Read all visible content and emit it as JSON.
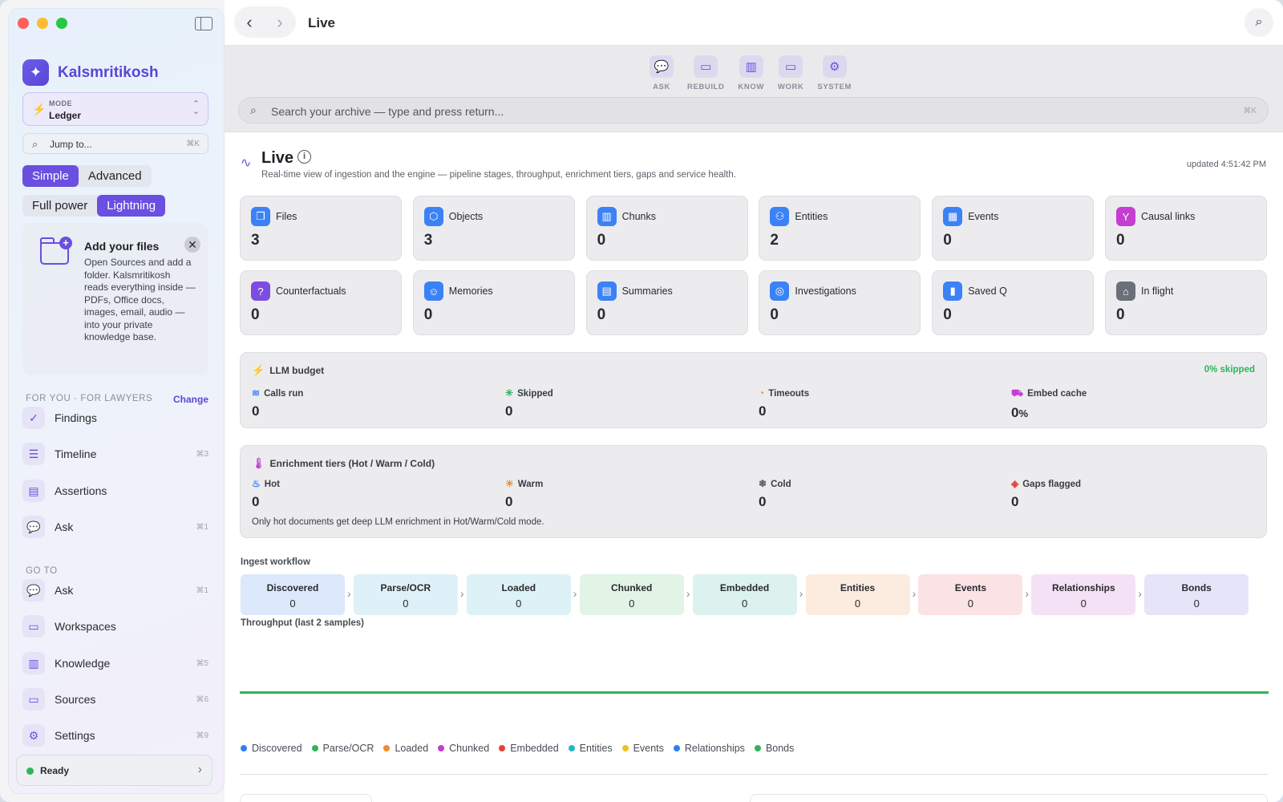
{
  "sidebar": {
    "brand": "Kalsmritikosh",
    "mode_label": "MODE",
    "mode_value": "Ledger",
    "jump_placeholder": "Jump to...",
    "jump_shortcut": "⌘K",
    "segment1": [
      "Simple",
      "Advanced"
    ],
    "segment2": [
      "Full power",
      "Lightning"
    ],
    "add_files_title": "Add your files",
    "add_files_body": "Open Sources and add a folder. Kalsmritikosh reads everything inside — PDFs, Office docs, images, email, audio — into your private knowledge base.",
    "for_you_header": "FOR YOU · FOR LAWYERS",
    "change_label": "Change",
    "for_you_items": [
      {
        "label": "Findings",
        "shortcut": "",
        "icon": "findings-icon"
      },
      {
        "label": "Timeline",
        "shortcut": "⌘3",
        "icon": "timeline-icon"
      },
      {
        "label": "Assertions",
        "shortcut": "",
        "icon": "assertions-icon"
      },
      {
        "label": "Ask",
        "shortcut": "⌘1",
        "icon": "ask-icon"
      }
    ],
    "goto_header": "GO TO",
    "goto_items": [
      {
        "label": "Ask",
        "shortcut": "⌘1",
        "icon": "ask-icon"
      },
      {
        "label": "Workspaces",
        "shortcut": "",
        "icon": "workspaces-icon"
      },
      {
        "label": "Knowledge",
        "shortcut": "⌘5",
        "icon": "knowledge-icon"
      },
      {
        "label": "Sources",
        "shortcut": "⌘6",
        "icon": "sources-icon"
      },
      {
        "label": "Settings",
        "shortcut": "⌘9",
        "icon": "settings-icon"
      }
    ],
    "status": "Ready"
  },
  "topbar": {
    "title": "Live"
  },
  "toolbar": {
    "tools": [
      "ASK",
      "REBUILD",
      "KNOW",
      "WORK",
      "SYSTEM"
    ],
    "search_placeholder": "Search your archive — type and press return...",
    "search_shortcut": "⌘K"
  },
  "page": {
    "title": "Live",
    "subtitle": "Real-time view of ingestion and the engine — pipeline stages, throughput, enrichment tiers, gaps and service health.",
    "updated": "updated 4:51:42 PM"
  },
  "stats": [
    {
      "label": "Files",
      "value": "3",
      "color": "#3b82f6",
      "icon": "files-icon"
    },
    {
      "label": "Objects",
      "value": "3",
      "color": "#3b82f6",
      "icon": "objects-icon"
    },
    {
      "label": "Chunks",
      "value": "0",
      "color": "#3b82f6",
      "icon": "chunks-icon"
    },
    {
      "label": "Entities",
      "value": "2",
      "color": "#3b82f6",
      "icon": "entities-icon"
    },
    {
      "label": "Events",
      "value": "0",
      "color": "#3b82f6",
      "icon": "events-icon"
    },
    {
      "label": "Causal links",
      "value": "0",
      "color": "#c33ed1",
      "icon": "causal-links-icon"
    },
    {
      "label": "Counterfactuals",
      "value": "0",
      "color": "#7c4de0",
      "icon": "counterfactuals-icon"
    },
    {
      "label": "Memories",
      "value": "0",
      "color": "#3b82f6",
      "icon": "memories-icon"
    },
    {
      "label": "Summaries",
      "value": "0",
      "color": "#3b82f6",
      "icon": "summaries-icon"
    },
    {
      "label": "Investigations",
      "value": "0",
      "color": "#3b82f6",
      "icon": "investigations-icon"
    },
    {
      "label": "Saved Q",
      "value": "0",
      "color": "#3b82f6",
      "icon": "saved-q-icon"
    },
    {
      "label": "In flight",
      "value": "0",
      "color": "#6b6f78",
      "icon": "in-flight-icon"
    }
  ],
  "llm_budget": {
    "title": "LLM budget",
    "skipped_pct": "0% skipped",
    "metrics": [
      {
        "label": "Calls run",
        "value": "0",
        "unit": ""
      },
      {
        "label": "Skipped",
        "value": "0",
        "unit": ""
      },
      {
        "label": "Timeouts",
        "value": "0",
        "unit": ""
      },
      {
        "label": "Embed cache",
        "value": "0",
        "unit": "%"
      }
    ]
  },
  "enrichment": {
    "title": "Enrichment tiers (Hot / Warm / Cold)",
    "metrics": [
      {
        "label": "Hot",
        "value": "0"
      },
      {
        "label": "Warm",
        "value": "0"
      },
      {
        "label": "Cold",
        "value": "0"
      },
      {
        "label": "Gaps flagged",
        "value": "0"
      }
    ],
    "note": "Only hot documents get deep LLM enrichment in Hot/Warm/Cold mode."
  },
  "workflow": {
    "title": "Ingest workflow",
    "stages": [
      {
        "label": "Discovered",
        "value": "0",
        "bg": "#dce8fb"
      },
      {
        "label": "Parse/OCR",
        "value": "0",
        "bg": "#dff1f8"
      },
      {
        "label": "Loaded",
        "value": "0",
        "bg": "#dcf2f7"
      },
      {
        "label": "Chunked",
        "value": "0",
        "bg": "#e1f4e6"
      },
      {
        "label": "Embedded",
        "value": "0",
        "bg": "#dcf2ee"
      },
      {
        "label": "Entities",
        "value": "0",
        "bg": "#fcece0"
      },
      {
        "label": "Events",
        "value": "0",
        "bg": "#fbe2e4"
      },
      {
        "label": "Relationships",
        "value": "0",
        "bg": "#f5e1f5"
      },
      {
        "label": "Bonds",
        "value": "0",
        "bg": "#e6e4f9"
      }
    ]
  },
  "throughput": {
    "title": "Throughput (last 2 samples)",
    "line_color": "#2fb45a",
    "legend": [
      {
        "label": "Discovered",
        "color": "#2f7ff0"
      },
      {
        "label": "Parse/OCR",
        "color": "#2fb45a"
      },
      {
        "label": "Loaded",
        "color": "#f08a2f"
      },
      {
        "label": "Chunked",
        "color": "#c33ed1"
      },
      {
        "label": "Embedded",
        "color": "#e8403a"
      },
      {
        "label": "Entities",
        "color": "#22b8c6"
      },
      {
        "label": "Events",
        "color": "#f0c020"
      },
      {
        "label": "Relationships",
        "color": "#2f7ff0"
      },
      {
        "label": "Bonds",
        "color": "#2fb45a"
      }
    ]
  }
}
